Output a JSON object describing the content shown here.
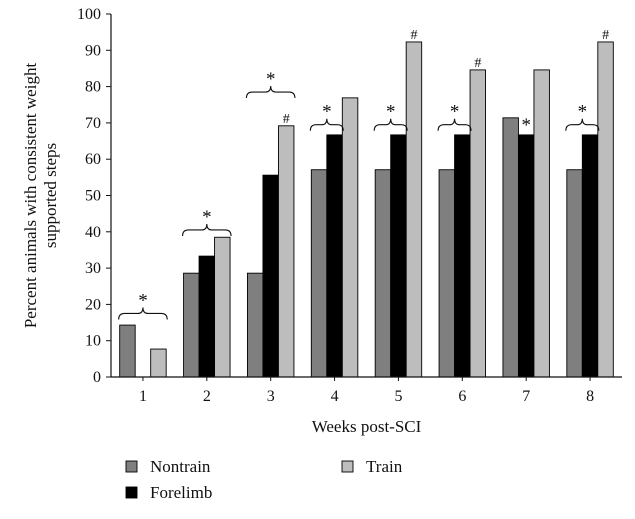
{
  "chart_data": {
    "type": "bar",
    "xlabel": "Weeks post-SCI",
    "ylabel_lines": [
      "Percent animals with consistent weight",
      "supported steps"
    ],
    "ylim": [
      0,
      100
    ],
    "yticks": [
      "0",
      "10",
      "20",
      "30",
      "40",
      "50",
      "60",
      "70",
      "80",
      "90",
      "100"
    ],
    "categories": [
      "1",
      "2",
      "3",
      "4",
      "5",
      "6",
      "7",
      "8"
    ],
    "series": [
      {
        "name": "Nontrain",
        "color": "#7f7f7f",
        "values": [
          14.3,
          28.6,
          28.6,
          57.1,
          57.1,
          57.1,
          71.4,
          57.1
        ]
      },
      {
        "name": "Forelimb",
        "color": "#000000",
        "values": [
          0,
          33.3,
          55.6,
          66.7,
          66.7,
          66.7,
          66.7,
          66.7
        ]
      },
      {
        "name": "Train",
        "color": "#bdbdbd",
        "values": [
          7.7,
          38.5,
          69.2,
          76.9,
          92.3,
          84.6,
          84.6,
          92.3
        ]
      }
    ],
    "annotations": [
      {
        "category": "1",
        "text": "*",
        "type": "brace",
        "from_series": 0,
        "to_series": 2,
        "at": 17.5
      },
      {
        "category": "2",
        "text": "*",
        "type": "brace",
        "from_series": 0,
        "to_series": 2,
        "at": 40.5
      },
      {
        "category": "3",
        "text": "*",
        "type": "brace",
        "from_series": 0,
        "to_series": 2,
        "at": 78.5
      },
      {
        "category": "3",
        "text": "#",
        "type": "mark",
        "series": 2
      },
      {
        "category": "4",
        "text": "*",
        "type": "brace",
        "from_series": 0,
        "to_series": 1,
        "at": 69.5
      },
      {
        "category": "5",
        "text": "*",
        "type": "brace",
        "from_series": 0,
        "to_series": 1,
        "at": 69.5
      },
      {
        "category": "5",
        "text": "#",
        "type": "mark",
        "series": 2
      },
      {
        "category": "6",
        "text": "*",
        "type": "brace",
        "from_series": 0,
        "to_series": 1,
        "at": 69.5
      },
      {
        "category": "6",
        "text": "#",
        "type": "mark",
        "series": 2
      },
      {
        "category": "7",
        "text": "*",
        "type": "mark",
        "series": 1
      },
      {
        "category": "8",
        "text": "*",
        "type": "brace",
        "from_series": 0,
        "to_series": 1,
        "at": 69.5
      },
      {
        "category": "8",
        "text": "#",
        "type": "mark",
        "series": 2
      }
    ],
    "legend": [
      {
        "label": "Nontrain",
        "color": "#7f7f7f"
      },
      {
        "label": "Train",
        "color": "#bdbdbd"
      },
      {
        "label": "Forelimb",
        "color": "#000000"
      }
    ]
  }
}
